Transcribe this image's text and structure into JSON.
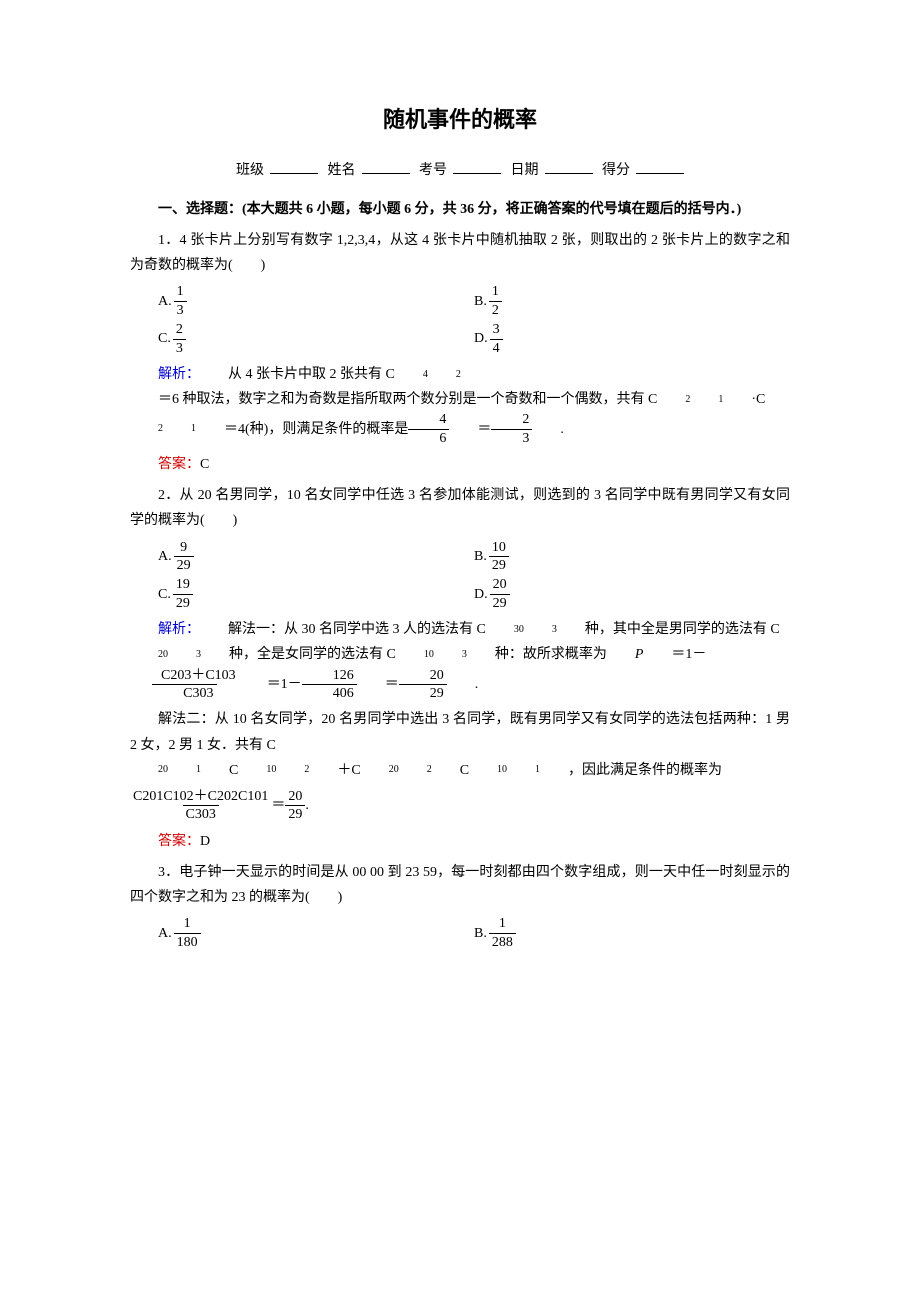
{
  "title": "随机事件的概率",
  "form": {
    "class": "班级",
    "name": "姓名",
    "id": "考号",
    "date": "日期",
    "score": "得分"
  },
  "section1": {
    "heading": "一、选择题：(本大题共 6 小题，每小题 6 分，共 36 分，将正确答案的代号填在题后的括号内．)"
  },
  "q1": {
    "stem": "1．4 张卡片上分别写有数字 1,2,3,4，从这 4 张卡片中随机抽取 2 张，则取出的 2 张卡片上的数字之和为奇数的概率为(　　)",
    "A": {
      "num": "1",
      "den": "3"
    },
    "B": {
      "num": "1",
      "den": "2"
    },
    "C": {
      "num": "2",
      "den": "3"
    },
    "D": {
      "num": "3",
      "den": "4"
    },
    "jiexi_prefix": "解析：",
    "jiexi_a": "从 4 张卡片中取 2 张共有 C",
    "jiexi_b": "＝6 种取法，数字之和为奇数是指所取两个数分别是一个奇数和一个偶数，共有 C",
    "jiexi_c": "·C",
    "jiexi_d": "＝4(种)，则满足条件的概率是",
    "frac1": {
      "num": "4",
      "den": "6"
    },
    "frac2": {
      "num": "2",
      "den": "3"
    },
    "answer_prefix": "答案：",
    "answer": "C"
  },
  "q2": {
    "stem": "2．从 20 名男同学，10 名女同学中任选 3 名参加体能测试，则选到的 3 名同学中既有男同学又有女同学的概率为(　　)",
    "A": {
      "num": "9",
      "den": "29"
    },
    "B": {
      "num": "10",
      "den": "29"
    },
    "C": {
      "num": "19",
      "den": "29"
    },
    "D": {
      "num": "20",
      "den": "29"
    },
    "jiexi_prefix": "解析：",
    "m1_a": "解法一：从 30 名同学中选 3 人的选法有 C",
    "m1_b": " 种，其中全是男同学的选法有 C",
    "m1_c": "种，全是女同学的选法有 C",
    "m1_d": " 种：故所求概率为 ",
    "m1_e": "＝1－",
    "m1_f": "＝1－",
    "frac_top_a": "C203＋C103",
    "frac_bot_a": "C303",
    "frac_b": {
      "num": "126",
      "den": "406"
    },
    "frac_c": {
      "num": "20",
      "den": "29"
    },
    "m2_a": "解法二：从 10 名女同学，20 名男同学中选出 3 名同学，既有男同学又有女同学的选法包括两种：1 男 2 女，2 男 1 女．共有 C",
    "m2_b": "C",
    "m2_c": "＋C",
    "m2_d": "C",
    "m2_e": "，因此满足条件的概率为",
    "frac2_top": "C201C102＋C202C101",
    "frac2_bot": "C303",
    "frac2_res": {
      "num": "20",
      "den": "29"
    },
    "answer_prefix": "答案：",
    "answer": "D"
  },
  "q3": {
    "stem": "3．电子钟一天显示的时间是从 00 00 到 23 59，每一时刻都由四个数字组成，则一天中任一时刻显示的四个数字之和为 23 的概率为(　　)",
    "A": {
      "num": "1",
      "den": "180"
    },
    "B": {
      "num": "1",
      "den": "288"
    }
  },
  "labels": {
    "A": "A.",
    "B": "B.",
    "C": "C.",
    "D": "D."
  },
  "math": {
    "eq": "＝",
    "dot": ".",
    "period": "."
  },
  "colors": {
    "blue": "#0000cc",
    "red": "#cc0000",
    "text": "#000000",
    "bg": "#ffffff"
  }
}
